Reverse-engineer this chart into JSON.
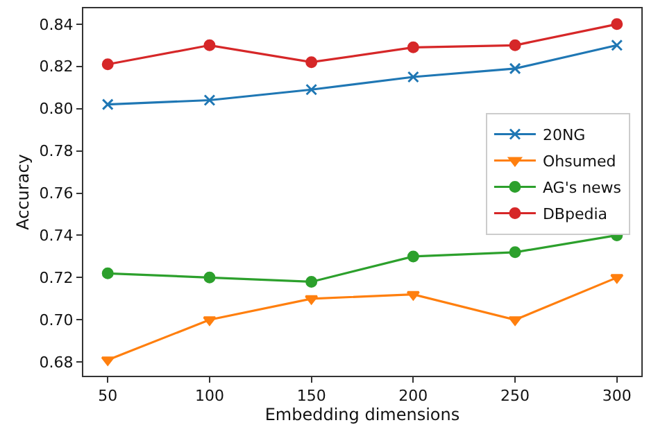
{
  "chart_data": {
    "type": "line",
    "xlabel": "Embedding dimensions",
    "ylabel": "Accuracy",
    "x": [
      50,
      100,
      150,
      200,
      250,
      300
    ],
    "xlim": [
      38,
      312
    ],
    "xticks": [
      50,
      100,
      150,
      200,
      250,
      300
    ],
    "ylim": [
      0.6735,
      0.8475
    ],
    "yticks": [
      {
        "value": 0.68,
        "label": "0.68"
      },
      {
        "value": 0.7,
        "label": "0.70"
      },
      {
        "value": 0.72,
        "label": "0.72"
      },
      {
        "value": 0.74,
        "label": "0.74"
      },
      {
        "value": 0.76,
        "label": "0.76"
      },
      {
        "value": 0.78,
        "label": "0.78"
      },
      {
        "value": 0.8,
        "label": "0.80"
      },
      {
        "value": 0.82,
        "label": "0.82"
      },
      {
        "value": 0.84,
        "label": "0.84"
      }
    ],
    "legend": "right",
    "line_style": "solid",
    "series": [
      {
        "name": "20NG",
        "color": "#1f77b4",
        "marker": "cross",
        "values": [
          0.802,
          0.804,
          0.809,
          0.815,
          0.819,
          0.83
        ]
      },
      {
        "name": "Ohsumed",
        "color": "#ff7f0e",
        "marker": "triangle",
        "values": [
          0.681,
          0.7,
          0.71,
          0.712,
          0.7,
          0.72
        ]
      },
      {
        "name": "AG's news",
        "color": "#2ca02c",
        "marker": "circle",
        "values": [
          0.722,
          0.72,
          0.718,
          0.73,
          0.732,
          0.74
        ]
      },
      {
        "name": "DBpedia",
        "color": "#d62728",
        "marker": "circle",
        "values": [
          0.821,
          0.83,
          0.822,
          0.829,
          0.83,
          0.84
        ]
      }
    ]
  }
}
